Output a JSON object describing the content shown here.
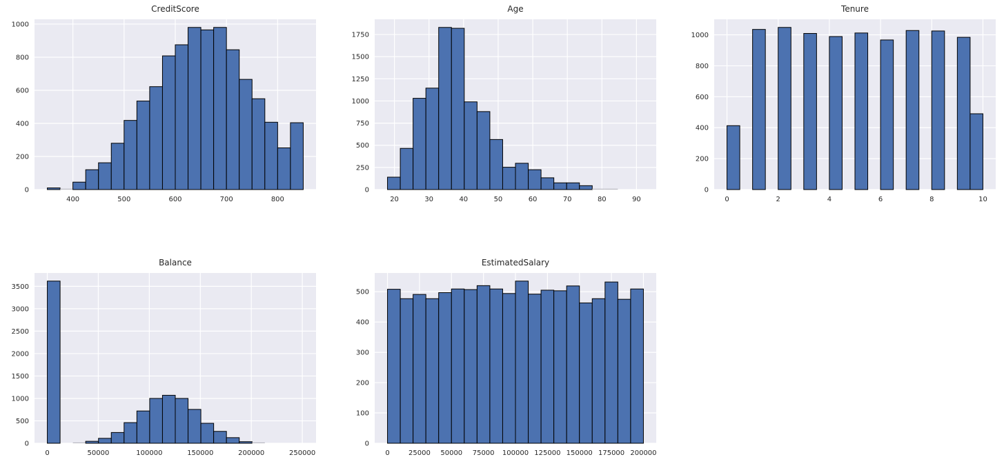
{
  "figure": {
    "kind": "histogram-grid",
    "rows": 2,
    "cols": 3,
    "background": "#ffffff"
  },
  "style": {
    "bar_fill": "#4C72B0",
    "bar_edge": "#000000",
    "tiny_bar_fill": "#b9b9c2",
    "axes_bg": "#EAEAF2",
    "grid_color": "#FFFFFF",
    "tick_color": "#262626",
    "title_color": "#262626"
  },
  "chart_data": [
    {
      "type": "bar",
      "subtype": "histogram",
      "title": "CreditScore",
      "bin_start": 350,
      "bin_width": 25,
      "values": [
        10,
        3,
        45,
        120,
        162,
        280,
        418,
        535,
        622,
        808,
        875,
        980,
        965,
        980,
        845,
        666,
        549,
        407,
        252,
        404
      ],
      "xlim": [
        325,
        875
      ],
      "ylim": [
        0,
        1029
      ],
      "xticks": [
        400,
        500,
        600,
        700,
        800
      ],
      "yticks": [
        0,
        200,
        400,
        600,
        800,
        1000
      ],
      "grid": true,
      "legend": null
    },
    {
      "type": "bar",
      "subtype": "histogram",
      "title": "Age",
      "bin_start": 18,
      "bin_width": 3.7,
      "values": [
        140,
        465,
        1030,
        1145,
        1830,
        1820,
        990,
        880,
        565,
        252,
        297,
        224,
        133,
        76,
        76,
        44,
        12,
        5,
        2,
        2
      ],
      "xlim": [
        14.3,
        95.7
      ],
      "ylim": [
        0,
        1921.5
      ],
      "xticks": [
        20,
        30,
        40,
        50,
        60,
        70,
        80,
        90
      ],
      "yticks": [
        0,
        250,
        500,
        750,
        1000,
        1250,
        1500,
        1750
      ],
      "grid": true,
      "legend": null
    },
    {
      "type": "bar",
      "subtype": "histogram",
      "title": "Tenure",
      "bin_start": 0,
      "bin_width": 0.5,
      "values": [
        413,
        0,
        1035,
        0,
        1048,
        0,
        1009,
        0,
        989,
        0,
        1012,
        0,
        967,
        0,
        1028,
        0,
        1025,
        0,
        984,
        490
      ],
      "xlim": [
        -0.5,
        10.5
      ],
      "ylim": [
        0,
        1100.4
      ],
      "xticks": [
        0,
        2,
        4,
        6,
        8,
        10
      ],
      "yticks": [
        0,
        200,
        400,
        600,
        800,
        1000
      ],
      "grid": true,
      "legend": null
    },
    {
      "type": "bar",
      "subtype": "histogram",
      "title": "Balance",
      "bin_start": 0,
      "bin_width": 12545,
      "values": [
        3617,
        1,
        14,
        44,
        110,
        240,
        460,
        720,
        1000,
        1070,
        1000,
        755,
        445,
        265,
        125,
        35,
        18,
        3,
        1,
        1
      ],
      "xlim": [
        -12545,
        263445
      ],
      "ylim": [
        0,
        3797.9
      ],
      "xticks": [
        0,
        50000,
        100000,
        150000,
        200000,
        250000
      ],
      "yticks": [
        0,
        500,
        1000,
        1500,
        2000,
        2500,
        3000,
        3500
      ],
      "grid": true,
      "legend": null
    },
    {
      "type": "bar",
      "subtype": "histogram",
      "title": "EstimatedSalary",
      "bin_start": 0,
      "bin_width": 10000,
      "values": [
        508,
        477,
        491,
        477,
        497,
        509,
        507,
        520,
        509,
        494,
        535,
        492,
        505,
        503,
        519,
        463,
        477,
        532,
        475,
        509
      ],
      "xlim": [
        -10000,
        210000
      ],
      "ylim": [
        0,
        561.75
      ],
      "xticks": [
        0,
        25000,
        50000,
        75000,
        100000,
        125000,
        150000,
        175000,
        200000
      ],
      "yticks": [
        0,
        100,
        200,
        300,
        400,
        500
      ],
      "grid": true,
      "legend": null
    }
  ]
}
